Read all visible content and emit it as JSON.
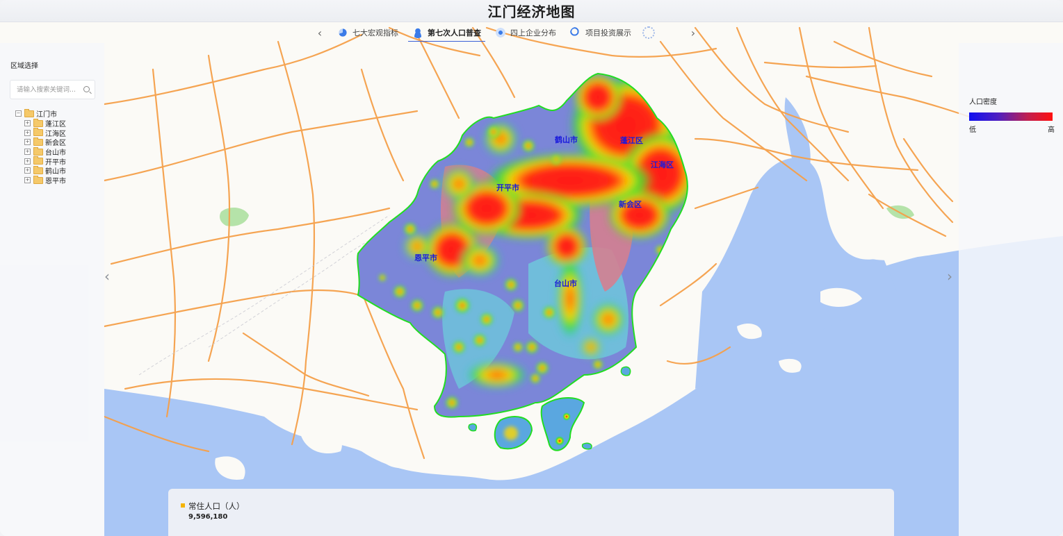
{
  "title": "江门经济地图",
  "tabs": [
    {
      "label": "七大宏观指标",
      "icon": "pie-chart-icon",
      "active": false
    },
    {
      "label": "第七次人口普查",
      "icon": "person-icon",
      "active": true
    },
    {
      "label": "四上企业分布",
      "icon": "location-pin-icon",
      "active": false
    },
    {
      "label": "项目投资展示",
      "icon": "magnifier-icon",
      "active": false
    }
  ],
  "region_panel": {
    "title": "区域选择",
    "search_placeholder": "请输入搜索关键词...",
    "root": "江门市",
    "children": [
      "蓬江区",
      "江海区",
      "新会区",
      "台山市",
      "开平市",
      "鹤山市",
      "恩平市"
    ]
  },
  "legend": {
    "title": "人口密度",
    "low": "低",
    "high": "高",
    "low_color": "#1010f0",
    "high_color": "#ff1010"
  },
  "map_labels": [
    "鹤山市",
    "蓬江区",
    "江海区",
    "开平市",
    "新会区",
    "恩平市",
    "台山市"
  ],
  "stats": {
    "label": "常住人口（人）",
    "value": "9,596,180"
  },
  "colors": {
    "sea": "#a9c6f5",
    "road": "#f5a04a",
    "boundary": "#22dd22",
    "accent": "#f5b400"
  }
}
